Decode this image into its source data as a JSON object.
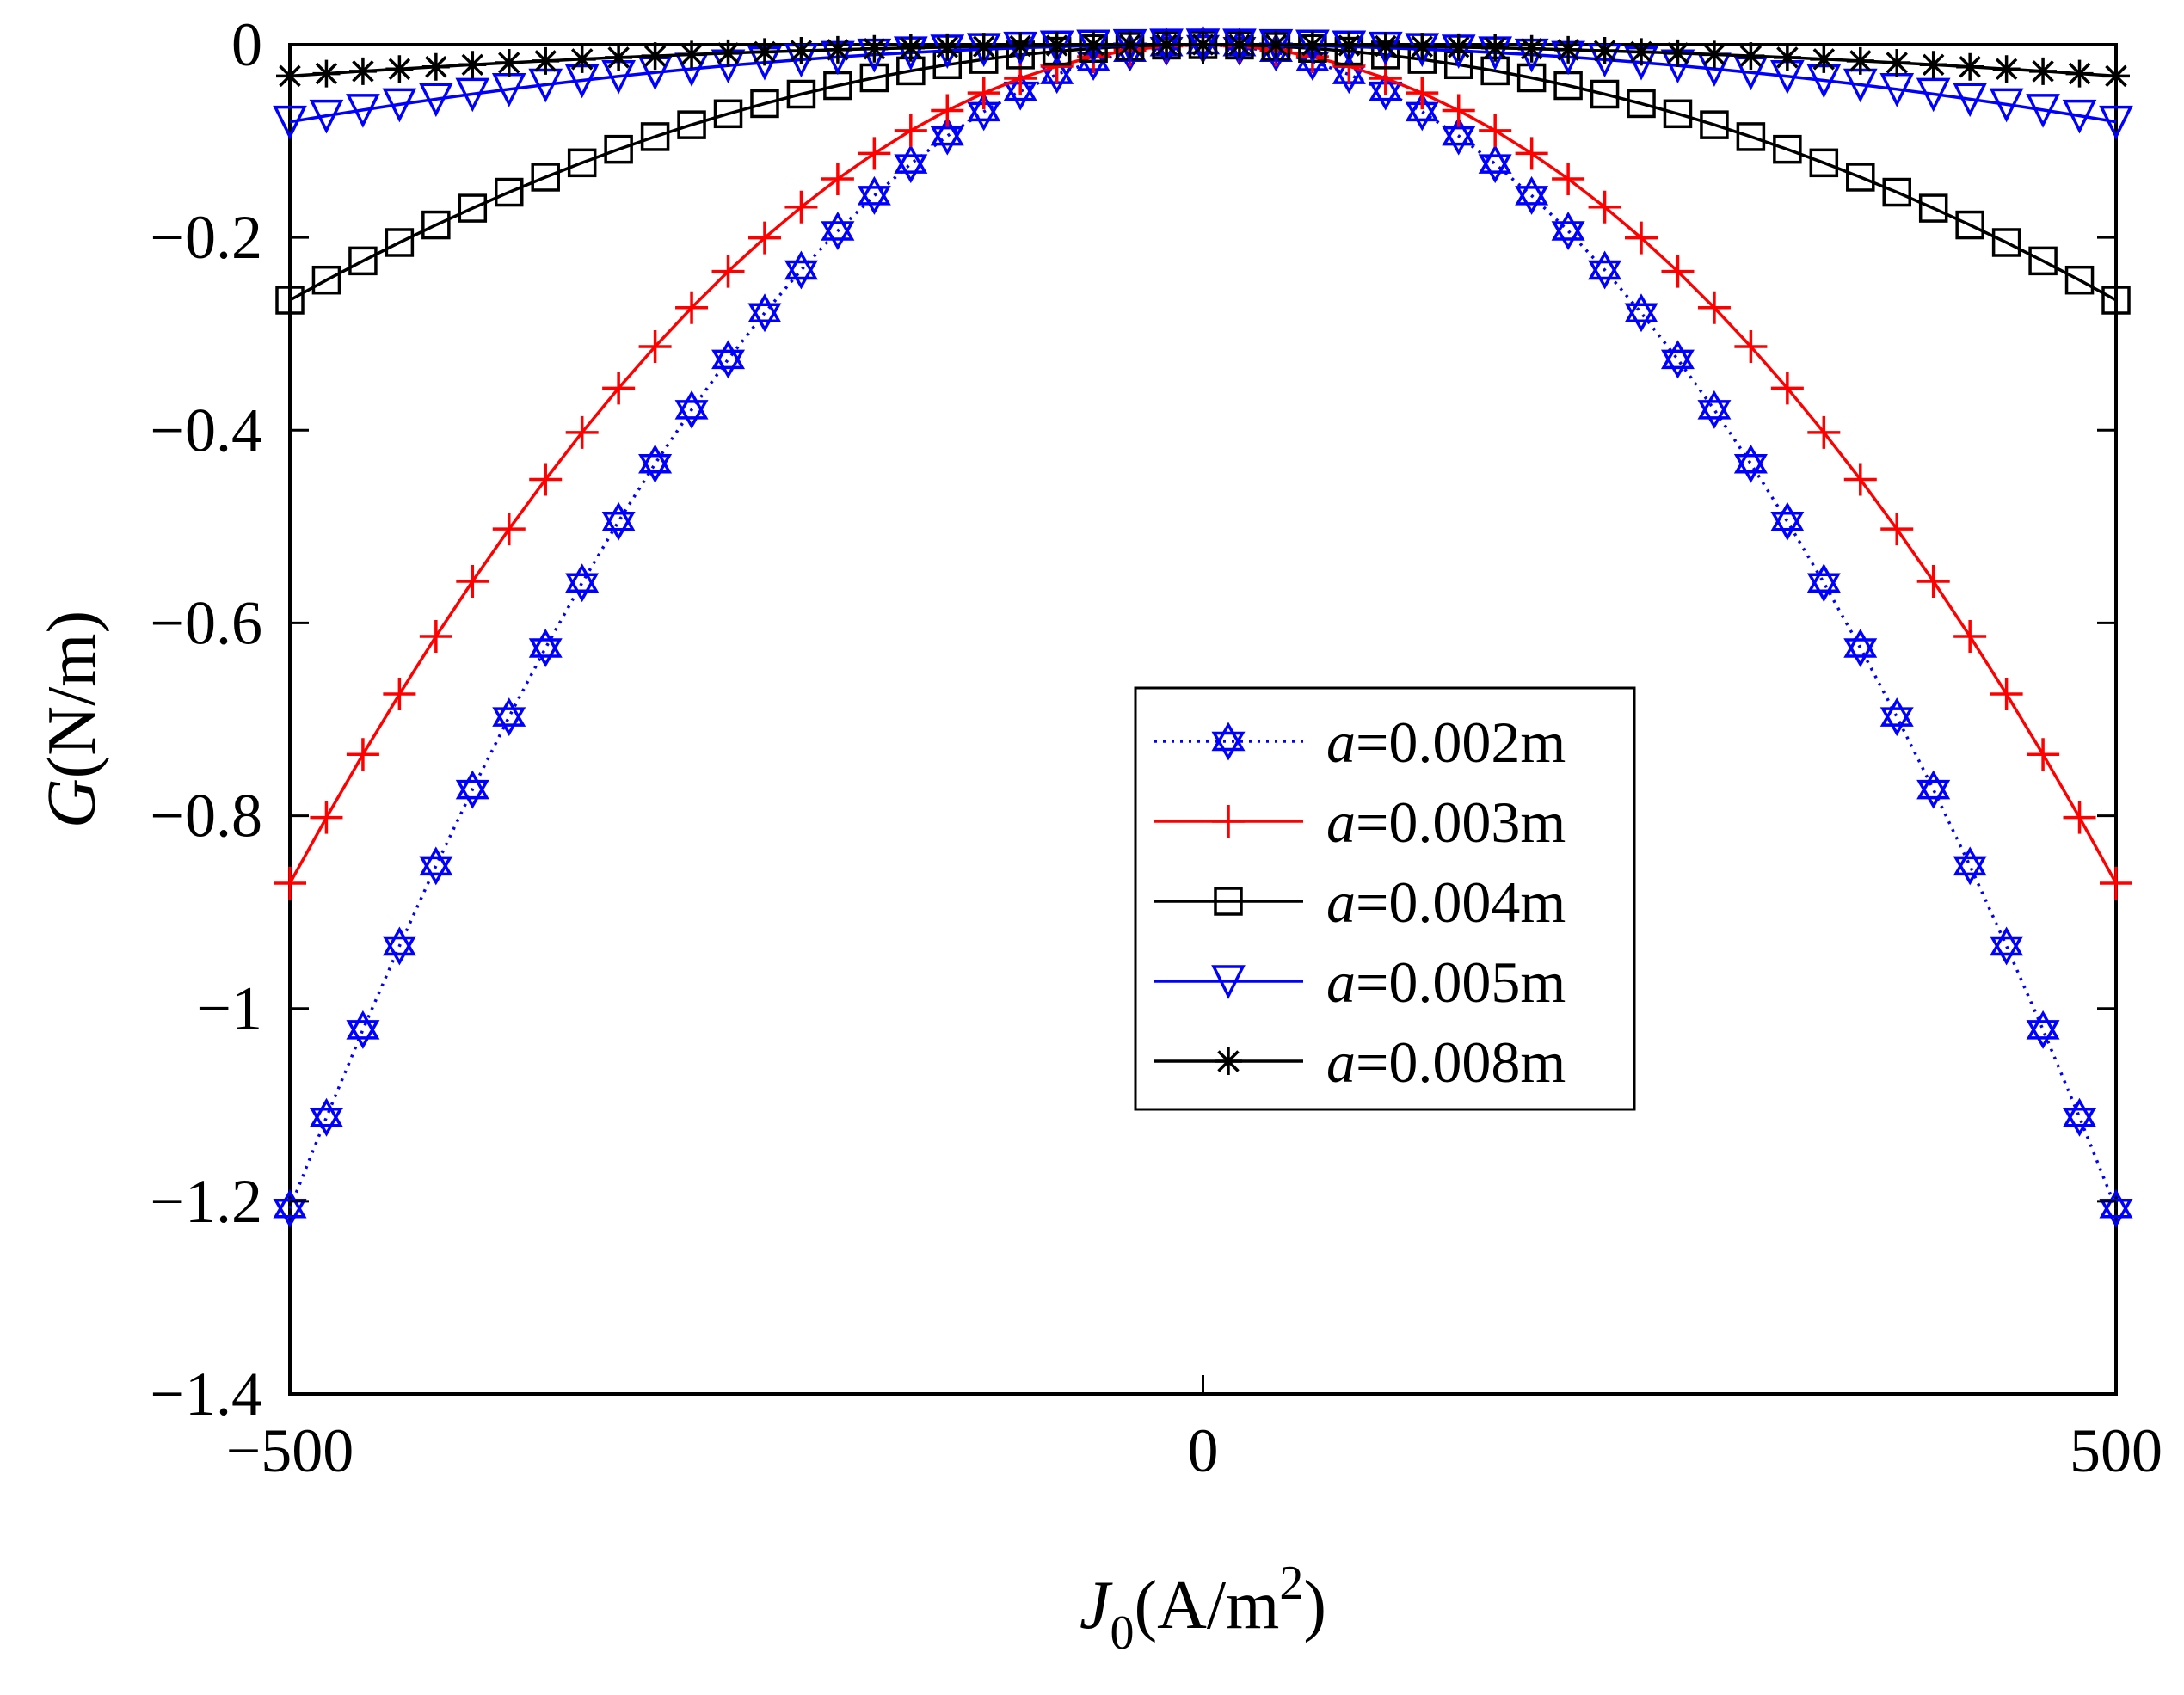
{
  "chart_data": {
    "type": "line",
    "title": "",
    "xlabel": {
      "main": "J",
      "sub": "0",
      "unit": "(A/m",
      "sup": "2",
      "close": ")"
    },
    "ylabel": {
      "italic": "G",
      "unit": "(N/m)"
    },
    "xlim": [
      -500,
      500
    ],
    "ylim": [
      -1.4,
      0
    ],
    "xticks": [
      -500,
      0,
      500
    ],
    "xtick_labels": [
      "−500",
      "0",
      "500"
    ],
    "yticks": [
      0,
      -0.2,
      -0.4,
      -0.6,
      -0.8,
      -1,
      -1.2,
      -1.4
    ],
    "ytick_labels": [
      "0",
      "−0.2",
      "−0.4",
      "−0.6",
      "−0.8",
      "−1",
      "−1.2",
      "−1.4"
    ],
    "grid": false,
    "legend_position": "center-right",
    "x": [
      -500,
      -480,
      -460,
      -440,
      -420,
      -400,
      -380,
      -360,
      -340,
      -320,
      -300,
      -280,
      -260,
      -240,
      -220,
      -200,
      -180,
      -160,
      -140,
      -120,
      -100,
      -80,
      -60,
      -40,
      -20,
      0,
      20,
      40,
      60,
      80,
      100,
      120,
      140,
      160,
      180,
      200,
      220,
      240,
      260,
      280,
      300,
      320,
      340,
      360,
      380,
      400,
      420,
      440,
      460,
      480,
      500
    ],
    "series": [
      {
        "name": "0.002m",
        "prefix": "a",
        "suffix": "=0.002m",
        "coef": -4.83e-06,
        "color": "#0000ff",
        "marker": "hexagram",
        "linestyle": "dotted"
      },
      {
        "name": "0.003m",
        "prefix": "a",
        "suffix": "=0.003m",
        "coef": -3.48e-06,
        "color": "#ff0000",
        "marker": "plus",
        "linestyle": "solid"
      },
      {
        "name": "0.004m",
        "prefix": "a",
        "suffix": "=0.004m",
        "coef": -1.06e-06,
        "color": "#000000",
        "marker": "square",
        "linestyle": "solid"
      },
      {
        "name": "0.005m",
        "prefix": "a",
        "suffix": "=0.005m",
        "coef": -3.2e-07,
        "color": "#0000ff",
        "marker": "triangle-down",
        "linestyle": "solid"
      },
      {
        "name": "0.008m",
        "prefix": "a",
        "suffix": "=0.008m",
        "coef": -1.3e-07,
        "color": "#000000",
        "marker": "asterisk",
        "linestyle": "solid"
      }
    ]
  }
}
